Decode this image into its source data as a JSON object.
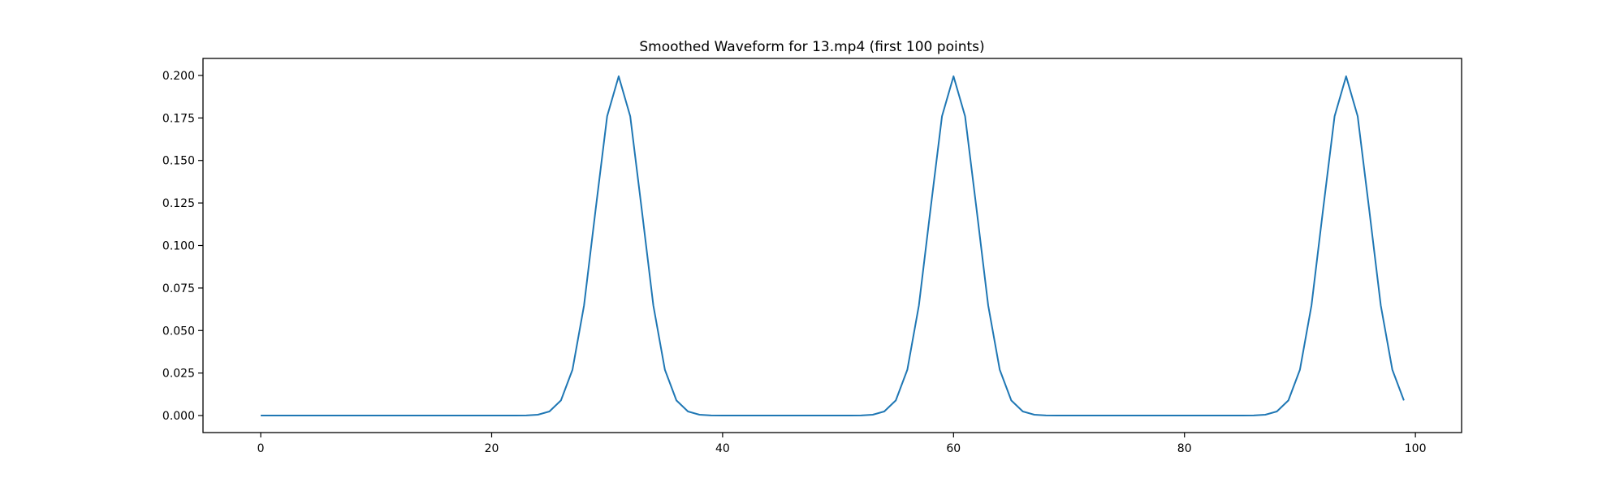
{
  "chart_data": {
    "type": "line",
    "title": "Smoothed Waveform for 13.mp4 (first 100 points)",
    "xlabel": "",
    "ylabel": "",
    "xlim": [
      -5,
      104
    ],
    "ylim": [
      -0.01,
      0.21
    ],
    "grid": false,
    "x_ticks": [
      0,
      20,
      40,
      60,
      80,
      100
    ],
    "x_tick_labels": [
      "0",
      "20",
      "40",
      "60",
      "80",
      "100"
    ],
    "y_ticks": [
      0.0,
      0.025,
      0.05,
      0.075,
      0.1,
      0.125,
      0.15,
      0.175,
      0.2
    ],
    "y_tick_labels": [
      "0.000",
      "0.025",
      "0.050",
      "0.075",
      "0.100",
      "0.125",
      "0.150",
      "0.175",
      "0.200"
    ],
    "series": [
      {
        "color": "#1f77b4",
        "x": [
          0,
          1,
          2,
          3,
          4,
          5,
          6,
          7,
          8,
          9,
          10,
          11,
          12,
          13,
          14,
          15,
          16,
          17,
          18,
          19,
          20,
          21,
          22,
          23,
          24,
          25,
          26,
          27,
          28,
          29,
          30,
          31,
          32,
          33,
          34,
          35,
          36,
          37,
          38,
          39,
          40,
          41,
          42,
          43,
          44,
          45,
          46,
          47,
          48,
          49,
          50,
          51,
          52,
          53,
          54,
          55,
          56,
          57,
          58,
          59,
          60,
          61,
          62,
          63,
          64,
          65,
          66,
          67,
          68,
          69,
          70,
          71,
          72,
          73,
          74,
          75,
          76,
          77,
          78,
          79,
          80,
          81,
          82,
          83,
          84,
          85,
          86,
          87,
          88,
          89,
          90,
          91,
          92,
          93,
          94,
          95,
          96,
          97,
          98,
          99
        ],
        "y": [
          0,
          0,
          0,
          0,
          0,
          0,
          0,
          0,
          0,
          0,
          0,
          0,
          0,
          0,
          0,
          0,
          0,
          0,
          0,
          0,
          0,
          0,
          0,
          0.0001,
          0.0005,
          0.0024,
          0.0089,
          0.027,
          0.0648,
          0.121,
          0.176,
          0.1995,
          0.176,
          0.121,
          0.0648,
          0.027,
          0.0089,
          0.0024,
          0.0005,
          0.0001,
          0,
          0,
          0,
          0,
          0,
          0,
          0,
          0,
          0,
          0,
          0,
          0,
          0.0001,
          0.0005,
          0.0024,
          0.0089,
          0.027,
          0.0648,
          0.121,
          0.176,
          0.1995,
          0.176,
          0.121,
          0.0648,
          0.027,
          0.0089,
          0.0024,
          0.0005,
          0.0001,
          0,
          0,
          0,
          0,
          0,
          0,
          0,
          0,
          0,
          0,
          0,
          0,
          0,
          0,
          0,
          0,
          0,
          0.0001,
          0.0005,
          0.0024,
          0.0089,
          0.027,
          0.0648,
          0.121,
          0.176,
          0.1995,
          0.176,
          0.121,
          0.0648,
          0.027,
          0.0089
        ]
      }
    ]
  }
}
